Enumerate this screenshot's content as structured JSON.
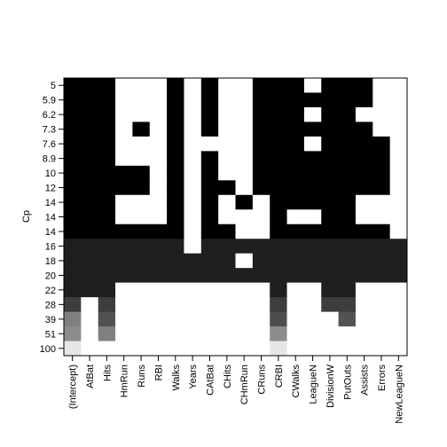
{
  "chart_data": {
    "type": "heatmap",
    "title": "",
    "xlabel": "",
    "ylabel": "Cp",
    "x_categories": [
      "(Intercept)",
      "AtBat",
      "Hits",
      "HmRun",
      "Runs",
      "RBI",
      "Walks",
      "Years",
      "CAtBat",
      "CHits",
      "CHmRun",
      "CRuns",
      "CRBI",
      "CWalks",
      "LeagueN",
      "DivisionW",
      "PutOuts",
      "Assists",
      "Errors",
      "NewLeagueN"
    ],
    "y_categories": [
      "5",
      "5.9",
      "6.2",
      "7.3",
      "7.6",
      "8.9",
      "10",
      "12",
      "14",
      "14",
      "14",
      "16",
      "18",
      "20",
      "22",
      "28",
      "39",
      "51",
      "100"
    ],
    "rows": [
      [
        1,
        1,
        1,
        0,
        0,
        0,
        1,
        0,
        1,
        0,
        0,
        1,
        1,
        1,
        0,
        1,
        1,
        1,
        0,
        0
      ],
      [
        1,
        1,
        1,
        0,
        0,
        0,
        1,
        0,
        1,
        0,
        0,
        1,
        1,
        1,
        1,
        1,
        1,
        1,
        0,
        0
      ],
      [
        1,
        1,
        1,
        0,
        0,
        0,
        1,
        0,
        1,
        0,
        0,
        1,
        1,
        1,
        0,
        1,
        1,
        0,
        0,
        0
      ],
      [
        1,
        1,
        1,
        0,
        1,
        0,
        1,
        0,
        1,
        0,
        0,
        1,
        1,
        1,
        1,
        1,
        1,
        1,
        0,
        0
      ],
      [
        1,
        1,
        1,
        0,
        0,
        0,
        1,
        0,
        0,
        0,
        0,
        1,
        1,
        1,
        0,
        1,
        1,
        1,
        1,
        0
      ],
      [
        1,
        1,
        1,
        0,
        0,
        0,
        1,
        0,
        1,
        0,
        0,
        1,
        1,
        1,
        1,
        1,
        1,
        1,
        1,
        0
      ],
      [
        1,
        1,
        1,
        1,
        1,
        0,
        1,
        0,
        1,
        0,
        0,
        1,
        1,
        1,
        1,
        1,
        1,
        1,
        1,
        0
      ],
      [
        1,
        1,
        1,
        1,
        1,
        0,
        1,
        0,
        1,
        1,
        0,
        1,
        1,
        1,
        1,
        1,
        1,
        1,
        1,
        0
      ],
      [
        1,
        1,
        1,
        0,
        0,
        0,
        1,
        0,
        1,
        0,
        1,
        0,
        1,
        1,
        1,
        1,
        1,
        0,
        0,
        0
      ],
      [
        1,
        1,
        1,
        0,
        0,
        0,
        1,
        0,
        1,
        0,
        0,
        0,
        1,
        0,
        0,
        1,
        1,
        0,
        0,
        0
      ],
      [
        1,
        1,
        1,
        1,
        1,
        1,
        1,
        0,
        1,
        1,
        0,
        0,
        1,
        1,
        1,
        1,
        1,
        1,
        1,
        0
      ]
    ],
    "bands": [
      {
        "value": 0.12,
        "rows": [
          11,
          12,
          13
        ],
        "cols": "all"
      },
      {
        "value": 0.12,
        "rows": [
          14
        ],
        "cols": [
          0,
          1,
          2,
          12,
          15,
          16
        ]
      },
      {
        "value": 0.24,
        "rows": [
          15
        ],
        "cols": [
          0,
          2,
          12,
          15,
          16
        ]
      },
      {
        "value": 0.32,
        "rows": [
          16
        ],
        "cols": [
          0,
          2,
          12,
          16
        ]
      },
      {
        "value": 0.4,
        "rows": [
          17
        ],
        "cols": [
          0,
          2,
          12
        ]
      },
      {
        "value": 0.9,
        "rows": [
          18
        ],
        "cols": [
          0,
          12
        ]
      }
    ],
    "band_exceptions": [
      {
        "row": 11,
        "col": 7,
        "value": 0
      },
      {
        "row": 12,
        "col": 10,
        "value": 0
      },
      {
        "row": 16,
        "col": 0,
        "value": 0.5
      },
      {
        "row": 17,
        "col": 0,
        "value": 0.55
      },
      {
        "row": 17,
        "col": 2,
        "value": 0.5
      },
      {
        "row": 17,
        "col": 12,
        "value": 0.55
      },
      {
        "row": 16,
        "col": 2,
        "value": 0.32
      },
      {
        "row": 16,
        "col": 12,
        "value": 0.3
      }
    ],
    "grid": false,
    "legend": "none",
    "colors": {
      "on": "#000000",
      "off": "#ffffff",
      "axis": "#000000"
    }
  }
}
